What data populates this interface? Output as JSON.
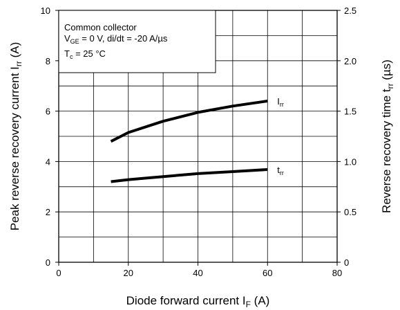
{
  "chart_data": {
    "type": "line",
    "xlabel": "Diode forward current",
    "xlabel_symbol": "I",
    "xlabel_sub": "F",
    "xlabel_unit": "(A)",
    "ylabel_left": "Peak reverse recovery current",
    "ylabel_left_symbol": "I",
    "ylabel_left_sub": "rr",
    "ylabel_left_unit": "(A)",
    "ylabel_right": "Reverse recovery time",
    "ylabel_right_symbol": "t",
    "ylabel_right_sub": "rr",
    "ylabel_right_unit": "(µs)",
    "xlim": [
      0,
      80
    ],
    "ylim_left": [
      0,
      10
    ],
    "ylim_right": [
      0,
      2.5
    ],
    "x_ticks": [
      "0",
      "20",
      "40",
      "60",
      "80"
    ],
    "y_left_ticks": [
      "0",
      "2",
      "4",
      "6",
      "8",
      "10"
    ],
    "y_right_ticks": [
      "0",
      "0.5",
      "1.0",
      "1.5",
      "2.0",
      "2.5"
    ],
    "grid": true,
    "annotation": {
      "line1": "Common collector",
      "line2_symbol": "V",
      "line2_sub": "GE",
      "line2_rest": " = 0 V, di/dt = -20 A/µs",
      "line3_symbol": "T",
      "line3_sub": "c",
      "line3_rest": " = 25 °C"
    },
    "series": [
      {
        "label_symbol": "I",
        "label_sub": "rr",
        "axis": "left",
        "x": [
          15,
          20,
          30,
          40,
          50,
          60
        ],
        "y": [
          4.8,
          5.15,
          5.6,
          5.95,
          6.2,
          6.4
        ]
      },
      {
        "label_symbol": "t",
        "label_sub": "rr",
        "axis": "right",
        "x": [
          15,
          20,
          30,
          40,
          50,
          60
        ],
        "y": [
          0.8,
          0.82,
          0.85,
          0.88,
          0.9,
          0.92
        ]
      }
    ]
  }
}
